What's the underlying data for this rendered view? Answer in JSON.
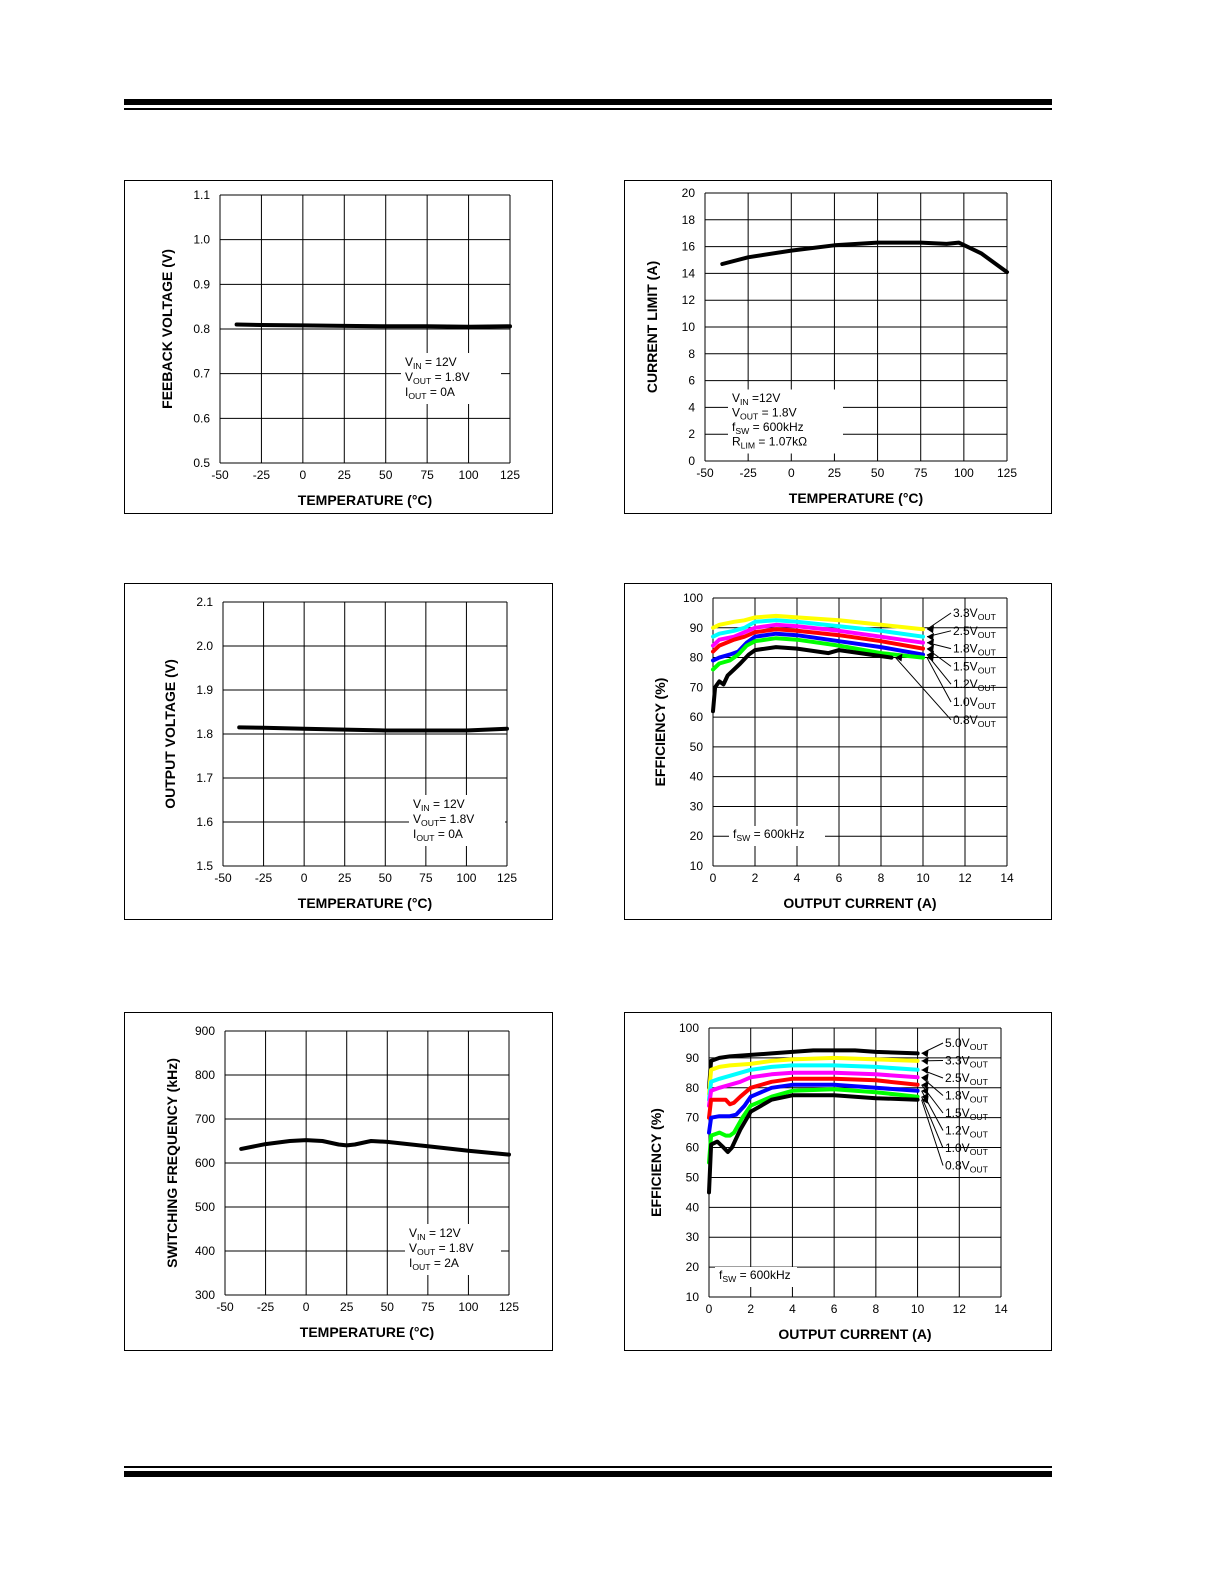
{
  "chart_data": [
    {
      "type": "line",
      "xlabel": "TEMPERATURE (°C)",
      "ylabel": "FEEBACK VOLTAGE (V)",
      "xlim": [
        -50,
        125
      ],
      "ylim": [
        0.5,
        1.1
      ],
      "xticks": [
        "-50",
        "-25",
        "0",
        "25",
        "50",
        "75",
        "100",
        "125"
      ],
      "yticks": [
        "0.5",
        "0.6",
        "0.7",
        "0.8",
        "0.9",
        "1.0",
        "1.1"
      ],
      "grid": true,
      "annotation": [
        {
          "main": "V",
          "sub": "IN",
          "rest": " = 12V"
        },
        {
          "main": "V",
          "sub": "OUT",
          "rest": " = 1.8V"
        },
        {
          "main": "I",
          "sub": "OUT",
          "rest": " = 0A"
        }
      ],
      "series": [
        {
          "color": "#000000",
          "x": [
            -40,
            -25,
            0,
            25,
            50,
            75,
            100,
            125
          ],
          "y": [
            0.81,
            0.809,
            0.808,
            0.807,
            0.806,
            0.806,
            0.805,
            0.806
          ]
        }
      ]
    },
    {
      "type": "line",
      "xlabel": "TEMPERATURE (°C)",
      "ylabel": "CURRENT LIMIT (A)",
      "xlim": [
        -50,
        125
      ],
      "ylim": [
        0,
        20
      ],
      "xticks": [
        "-50",
        "-25",
        "0",
        "25",
        "50",
        "75",
        "100",
        "125"
      ],
      "yticks": [
        "0",
        "2",
        "4",
        "6",
        "8",
        "10",
        "12",
        "14",
        "16",
        "18",
        "20"
      ],
      "grid": true,
      "annotation": [
        {
          "main": "V",
          "sub": "IN",
          "rest": " =12V"
        },
        {
          "main": "V",
          "sub": "OUT",
          "rest": " = 1.8V"
        },
        {
          "main": "f",
          "sub": "SW",
          "rest": " = 600kHz"
        },
        {
          "main": "R",
          "sub": "LIM",
          "rest": " = 1.07kΩ"
        }
      ],
      "series": [
        {
          "color": "#000000",
          "x": [
            -40,
            -25,
            0,
            25,
            50,
            75,
            90,
            97,
            110,
            125
          ],
          "y": [
            14.7,
            15.2,
            15.7,
            16.1,
            16.3,
            16.3,
            16.2,
            16.3,
            15.5,
            14.1
          ]
        }
      ]
    },
    {
      "type": "line",
      "xlabel": "TEMPERATURE (°C)",
      "ylabel": "OUTPUT VOLTAGE (V)",
      "xlim": [
        -50,
        125
      ],
      "ylim": [
        1.5,
        2.1
      ],
      "xticks": [
        "-50",
        "-25",
        "0",
        "25",
        "50",
        "75",
        "100",
        "125"
      ],
      "yticks": [
        "1.5",
        "1.6",
        "1.7",
        "1.8",
        "1.9",
        "2.0",
        "2.1"
      ],
      "grid": true,
      "annotation": [
        {
          "main": "V",
          "sub": "IN",
          "rest": " = 12V"
        },
        {
          "main": "V",
          "sub": "OUT",
          "rest": "= 1.8V"
        },
        {
          "main": "I",
          "sub": "OUT",
          "rest": " = 0A"
        }
      ],
      "series": [
        {
          "color": "#000000",
          "x": [
            -40,
            -25,
            0,
            25,
            50,
            75,
            100,
            125
          ],
          "y": [
            1.815,
            1.814,
            1.812,
            1.81,
            1.808,
            1.808,
            1.808,
            1.812
          ]
        }
      ]
    },
    {
      "type": "line",
      "xlabel": "OUTPUT CURRENT (A)",
      "ylabel": "EFFICIENCY (%)",
      "xlim": [
        0,
        14
      ],
      "ylim": [
        10,
        100
      ],
      "xticks": [
        "0",
        "2",
        "4",
        "6",
        "8",
        "10",
        "12",
        "14"
      ],
      "yticks": [
        "10",
        "20",
        "30",
        "40",
        "50",
        "60",
        "70",
        "80",
        "90",
        "100"
      ],
      "grid": true,
      "annotation": [
        {
          "main": "f",
          "sub": "SW",
          "rest": " = 600kHz"
        }
      ],
      "series": [
        {
          "name": "3.3V",
          "sub": "OUT",
          "color": "#ffff00",
          "x": [
            0,
            0.3,
            1,
            1.5,
            2,
            3,
            4,
            6,
            8,
            10
          ],
          "y": [
            90,
            91,
            92,
            92.5,
            93.5,
            94,
            93.5,
            92.5,
            91,
            89.5
          ]
        },
        {
          "name": "2.5V",
          "sub": "OUT",
          "color": "#00ffff",
          "x": [
            0,
            0.3,
            1,
            1.5,
            2,
            3,
            4,
            6,
            8,
            10
          ],
          "y": [
            87,
            88,
            89,
            90,
            92,
            92.5,
            92,
            90.5,
            89,
            87
          ]
        },
        {
          "name": "1.8V",
          "sub": "OUT",
          "color": "#ff00ff",
          "x": [
            0,
            0.3,
            1,
            1.5,
            2,
            3,
            4,
            6,
            8,
            10
          ],
          "y": [
            84,
            86,
            87,
            88.5,
            90,
            91,
            90.5,
            89,
            87,
            85
          ]
        },
        {
          "name": "1.5V",
          "sub": "OUT",
          "color": "#ff0000",
          "x": [
            0,
            0.3,
            1,
            1.5,
            2,
            3,
            4,
            6,
            8,
            10
          ],
          "y": [
            82,
            84,
            86,
            87,
            88.5,
            89.5,
            89,
            87.5,
            85.5,
            83
          ]
        },
        {
          "name": "1.2V",
          "sub": "OUT",
          "color": "#0000ff",
          "x": [
            0,
            0.3,
            0.8,
            1.2,
            1.6,
            2,
            3,
            4,
            6,
            8,
            10
          ],
          "y": [
            79,
            80,
            81,
            82,
            85,
            87,
            88,
            87.5,
            85.5,
            83.5,
            81
          ]
        },
        {
          "name": "1.0V",
          "sub": "OUT",
          "color": "#00ff00",
          "x": [
            0,
            0.3,
            0.8,
            1.2,
            1.6,
            2,
            3,
            4,
            6,
            8,
            10
          ],
          "y": [
            76,
            78,
            79,
            81,
            84,
            85.5,
            86.5,
            86,
            84,
            81.5,
            80
          ]
        },
        {
          "name": "0.8V",
          "sub": "OUT",
          "color": "#000000",
          "x": [
            0,
            0.1,
            0.3,
            0.5,
            0.7,
            1,
            1.3,
            1.7,
            2,
            3,
            4,
            5,
            5.5,
            6,
            6.5,
            7,
            8,
            8.5
          ],
          "y": [
            62,
            70,
            72,
            71,
            74,
            76,
            78,
            81,
            82.5,
            83.5,
            83,
            82,
            81.5,
            82.5,
            82,
            81.5,
            80.5,
            80
          ]
        }
      ]
    },
    {
      "type": "line",
      "xlabel": "TEMPERATURE (°C)",
      "ylabel": "SWITCHING FREQUENCY (kHz)",
      "xlim": [
        -50,
        125
      ],
      "ylim": [
        300,
        900
      ],
      "xticks": [
        "-50",
        "-25",
        "0",
        "25",
        "50",
        "75",
        "100",
        "125"
      ],
      "yticks": [
        "300",
        "400",
        "500",
        "600",
        "700",
        "800",
        "900"
      ],
      "grid": true,
      "annotation": [
        {
          "main": "V",
          "sub": "IN",
          "rest": " = 12V"
        },
        {
          "main": "V",
          "sub": "OUT",
          "rest": " = 1.8V"
        },
        {
          "main": "I",
          "sub": "OUT",
          "rest": " = 2A"
        }
      ],
      "series": [
        {
          "color": "#000000",
          "x": [
            -40,
            -25,
            -10,
            0,
            10,
            20,
            25,
            30,
            40,
            50,
            75,
            100,
            125
          ],
          "y": [
            632,
            643,
            650,
            652,
            650,
            642,
            640,
            642,
            650,
            648,
            638,
            628,
            619
          ]
        }
      ]
    },
    {
      "type": "line",
      "xlabel": "OUTPUT CURRENT (A)",
      "ylabel": "EFFICIENCY (%)",
      "xlim": [
        0,
        14
      ],
      "ylim": [
        10,
        100
      ],
      "xticks": [
        "0",
        "2",
        "4",
        "6",
        "8",
        "10",
        "12",
        "14"
      ],
      "yticks": [
        "10",
        "20",
        "30",
        "40",
        "50",
        "60",
        "70",
        "80",
        "90",
        "100"
      ],
      "grid": true,
      "annotation": [
        {
          "main": "f",
          "sub": "SW",
          "rest": " = 600kHz"
        }
      ],
      "series": [
        {
          "name": "5.0V",
          "sub": "OUT",
          "color": "#000000",
          "x": [
            0,
            0.1,
            0.5,
            1,
            2,
            3,
            4,
            5,
            6,
            7,
            8,
            10
          ],
          "y": [
            80,
            89,
            90,
            90.5,
            91,
            91.5,
            92,
            92.5,
            92.5,
            92.5,
            92,
            91.5
          ]
        },
        {
          "name": "3.3V",
          "sub": "OUT",
          "color": "#ffff00",
          "x": [
            0,
            0.1,
            0.5,
            1,
            2,
            3,
            4,
            6,
            8,
            10
          ],
          "y": [
            78,
            86,
            87,
            87.5,
            88,
            89,
            89.5,
            90,
            89.5,
            89
          ]
        },
        {
          "name": "2.5V",
          "sub": "OUT",
          "color": "#00ffff",
          "x": [
            0,
            0.1,
            0.5,
            1,
            1.5,
            2,
            3,
            4,
            6,
            8,
            10
          ],
          "y": [
            76,
            82,
            83,
            84,
            85,
            86,
            87,
            87.5,
            87.5,
            87,
            86
          ]
        },
        {
          "name": "1.8V",
          "sub": "OUT",
          "color": "#ff00ff",
          "x": [
            0,
            0.1,
            0.5,
            1,
            1.5,
            2,
            3,
            4,
            6,
            8,
            10
          ],
          "y": [
            74,
            79,
            80,
            81,
            82,
            83.5,
            84.5,
            85,
            85,
            84.5,
            83.5
          ]
        },
        {
          "name": "1.5V",
          "sub": "OUT",
          "color": "#ff0000",
          "x": [
            0,
            0.1,
            0.5,
            0.8,
            1,
            1.2,
            1.5,
            2,
            3,
            4,
            6,
            8,
            10
          ],
          "y": [
            70,
            76,
            76,
            76,
            74.5,
            75,
            77,
            80,
            82,
            83,
            83,
            82.5,
            81
          ]
        },
        {
          "name": "1.2V",
          "sub": "OUT",
          "color": "#0000ff",
          "x": [
            0,
            0.1,
            0.5,
            1,
            1.3,
            1.7,
            2,
            3,
            4,
            6,
            8,
            10
          ],
          "y": [
            65,
            70,
            70.5,
            70.5,
            71,
            74,
            77,
            80,
            81,
            81,
            80,
            79
          ]
        },
        {
          "name": "1.0V",
          "sub": "OUT",
          "color": "#00ff00",
          "x": [
            0,
            0.1,
            0.5,
            0.8,
            1,
            1.2,
            1.6,
            2,
            3,
            4,
            6,
            8,
            10
          ],
          "y": [
            55,
            64,
            65,
            64,
            64,
            65,
            70,
            74,
            77,
            79,
            79.5,
            78.5,
            77
          ]
        },
        {
          "name": "0.8V",
          "sub": "OUT",
          "color": "#000000",
          "x": [
            0,
            0.1,
            0.4,
            0.7,
            0.9,
            1.1,
            1.5,
            2,
            3,
            4,
            6,
            8,
            10
          ],
          "y": [
            45,
            61,
            62,
            60,
            58.5,
            60,
            66,
            72,
            76,
            77.5,
            77.5,
            76.5,
            76
          ]
        }
      ]
    }
  ]
}
